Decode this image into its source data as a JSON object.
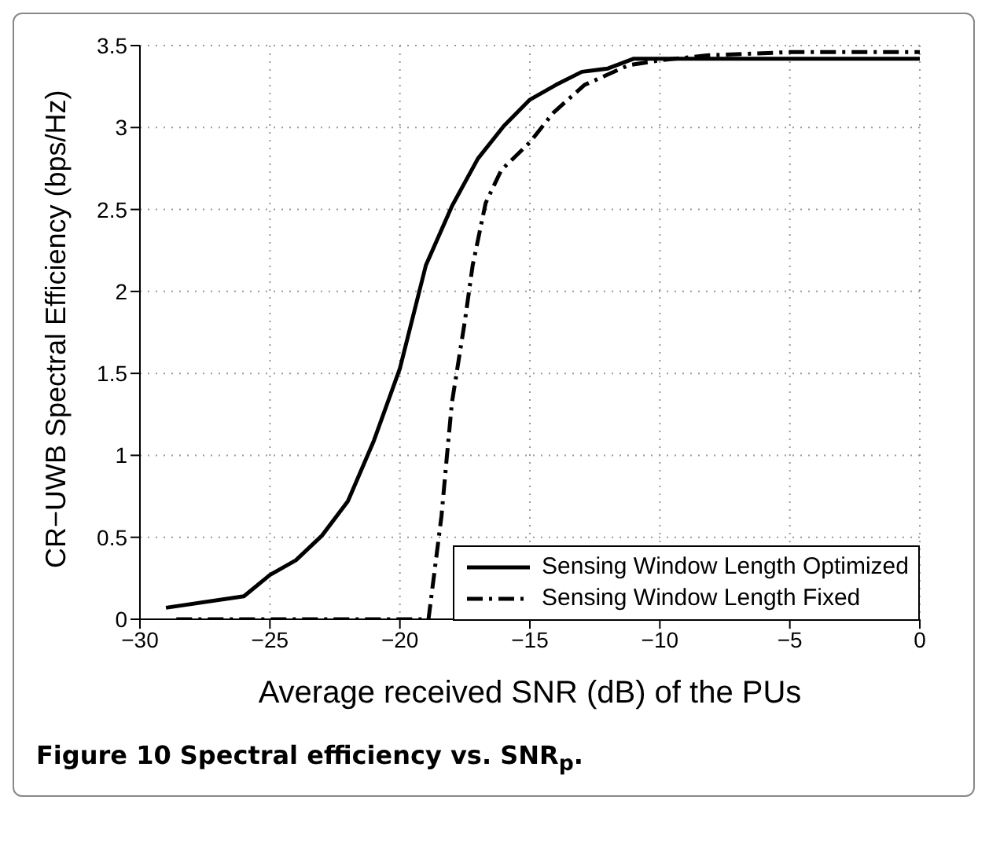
{
  "chart_data": {
    "type": "line",
    "xlabel": "Average received SNR (dB) of the PUs",
    "ylabel": "CR−UWB Spectral Efficiency (bps/Hz)",
    "xlim": [
      -30,
      0
    ],
    "xticks": [
      {
        "value": -30,
        "label": "−30"
      },
      {
        "value": -25,
        "label": "−25"
      },
      {
        "value": -20,
        "label": "−20"
      },
      {
        "value": -15,
        "label": "−15"
      },
      {
        "value": -10,
        "label": "−10"
      },
      {
        "value": -5,
        "label": "−5"
      },
      0
    ],
    "ylim": [
      0,
      3.5
    ],
    "yticks": [
      0,
      0.5,
      1,
      1.5,
      2,
      2.5,
      3,
      3.5
    ],
    "grid": true,
    "legend": "bottom right",
    "marker": "none",
    "annotations": [
      "Figure 10 Spectral efficiency vs. SNR$_{p}$."
    ],
    "series": [
      {
        "name": "Sensing Window Length Optimized",
        "color": "#000000",
        "line_style": "solid",
        "x": [
          -29,
          -26,
          -25,
          -24,
          -23,
          -22,
          -21,
          -20,
          -19,
          -18,
          -17,
          -16,
          -15,
          -14,
          -13,
          -12,
          -11,
          -10,
          -5,
          0
        ],
        "values": [
          0.07,
          0.14,
          0.27,
          0.36,
          0.51,
          0.72,
          1.09,
          1.53,
          2.16,
          2.52,
          2.81,
          3.01,
          3.17,
          3.26,
          3.34,
          3.36,
          3.42,
          3.42,
          3.42,
          3.42
        ]
      },
      {
        "name": "Sensing Window Length Fixed",
        "color": "#000000",
        "line_style": "dashed",
        "x": [
          -28.6,
          -20,
          -18.9,
          -18.4,
          -18.2,
          -18,
          -17.5,
          -17.2,
          -16.7,
          -16.1,
          -15,
          -14.1,
          -12.9,
          -11.2,
          -10,
          -8.2,
          -5,
          0
        ],
        "values": [
          0,
          0,
          0,
          0.63,
          0.98,
          1.32,
          1.82,
          2.16,
          2.54,
          2.74,
          2.91,
          3.09,
          3.26,
          3.38,
          3.41,
          3.44,
          3.46,
          3.46
        ]
      }
    ]
  }
}
